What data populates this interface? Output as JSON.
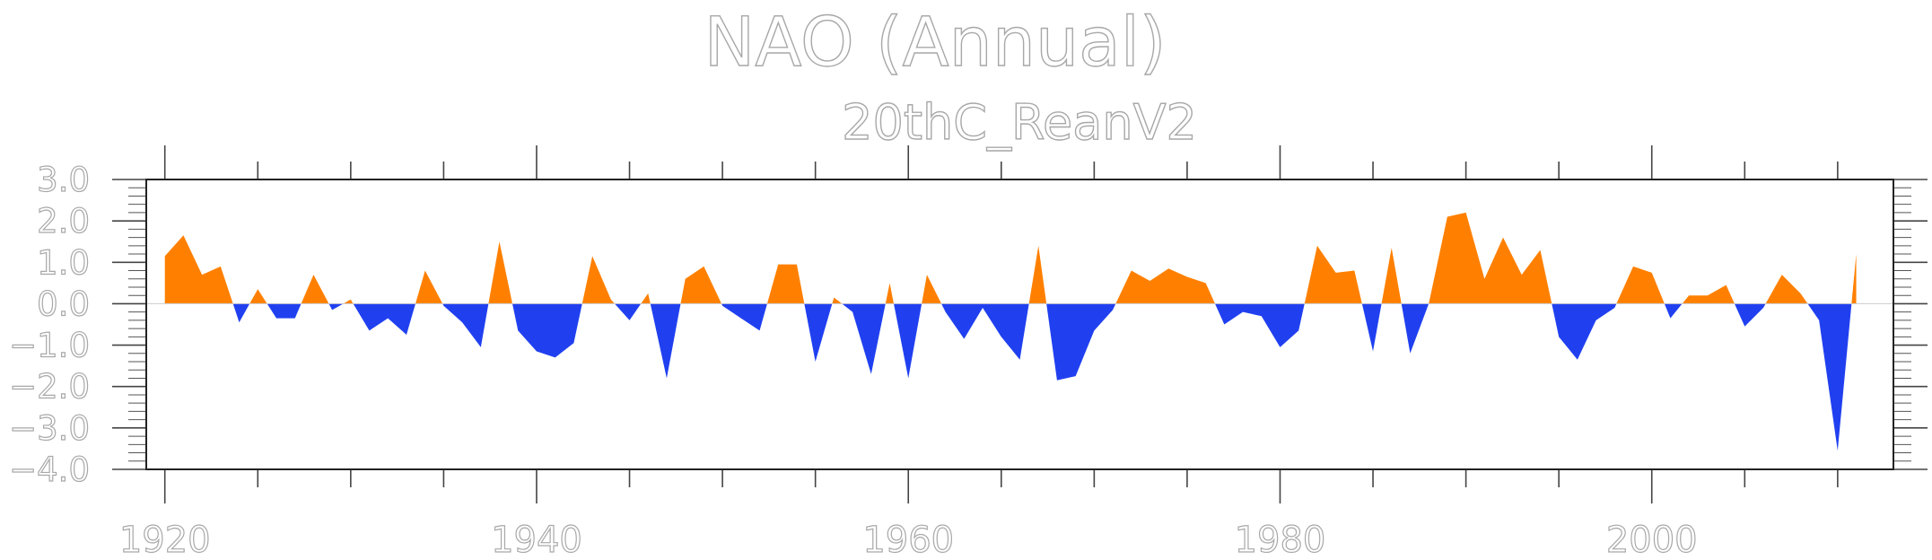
{
  "chart_data": {
    "type": "area",
    "title": "NAO (Annual)",
    "subtitle": "20thC_ReanV2",
    "xlabel": "",
    "ylabel": "",
    "xlim": [
      1919,
      2013
    ],
    "ylim": [
      -4.0,
      3.0
    ],
    "x_ticks": [
      1920,
      1940,
      1960,
      1980,
      2000
    ],
    "x_tick_labels": [
      "1920",
      "1940",
      "1960",
      "1980",
      "2000"
    ],
    "y_ticks": [
      3.0,
      2.0,
      1.0,
      0.0,
      -1.0,
      -2.0,
      -3.0,
      -4.0
    ],
    "y_tick_labels": [
      "3.0",
      "2.0",
      "1.0",
      "0.0",
      "−1.0",
      "−2.0",
      "−3.0",
      "−4.0"
    ],
    "grid": false,
    "colors": {
      "positive": "#ff8000",
      "negative": "#2040f0",
      "axis_text": "#a8a8a8"
    },
    "x": [
      1920,
      1921,
      1922,
      1923,
      1924,
      1925,
      1926,
      1927,
      1928,
      1929,
      1930,
      1931,
      1932,
      1933,
      1934,
      1935,
      1936,
      1937,
      1938,
      1939,
      1940,
      1941,
      1942,
      1943,
      1944,
      1945,
      1946,
      1947,
      1948,
      1949,
      1950,
      1951,
      1952,
      1953,
      1954,
      1955,
      1956,
      1957,
      1958,
      1959,
      1960,
      1961,
      1962,
      1963,
      1964,
      1965,
      1966,
      1967,
      1968,
      1969,
      1970,
      1971,
      1972,
      1973,
      1974,
      1975,
      1976,
      1977,
      1978,
      1979,
      1980,
      1981,
      1982,
      1983,
      1984,
      1985,
      1986,
      1987,
      1988,
      1989,
      1990,
      1991,
      1992,
      1993,
      1994,
      1995,
      1996,
      1997,
      1998,
      1999,
      2000,
      2001,
      2002,
      2003,
      2004,
      2005,
      2006,
      2007,
      2008,
      2009,
      2010,
      2011
    ],
    "values": [
      1.15,
      1.65,
      0.7,
      0.9,
      -0.45,
      0.35,
      -0.35,
      -0.35,
      0.7,
      -0.15,
      0.1,
      -0.65,
      -0.35,
      -0.75,
      0.8,
      -0.05,
      -0.45,
      -1.05,
      1.5,
      -0.65,
      -1.15,
      -1.3,
      -0.95,
      1.15,
      0.1,
      -0.4,
      0.25,
      -1.8,
      0.6,
      0.9,
      -0.05,
      -0.35,
      -0.65,
      0.95,
      0.95,
      -1.4,
      0.15,
      -0.2,
      -1.7,
      0.5,
      -1.8,
      0.7,
      -0.2,
      -0.85,
      -0.1,
      -0.8,
      -1.35,
      1.4,
      -1.85,
      -1.75,
      -0.65,
      -0.15,
      0.8,
      0.55,
      0.85,
      0.65,
      0.5,
      -0.5,
      -0.2,
      -0.3,
      -1.05,
      -0.65,
      1.4,
      0.75,
      0.8,
      -1.15,
      1.35,
      -1.2,
      0.0,
      2.1,
      2.2,
      0.6,
      1.6,
      0.7,
      1.3,
      -0.8,
      -1.35,
      -0.4,
      -0.1,
      0.9,
      0.75,
      -0.35,
      0.2,
      0.2,
      0.45,
      -0.55,
      -0.1,
      0.7,
      0.25,
      -0.4,
      -3.55,
      1.2
    ]
  }
}
